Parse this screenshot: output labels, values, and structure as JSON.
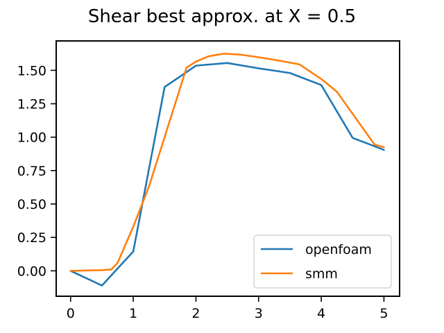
{
  "chart_data": {
    "type": "line",
    "title": "Shear best approx. at X = 0.5",
    "xlabel": "",
    "ylabel": "",
    "xlim": [
      -0.23,
      5.25
    ],
    "ylim": [
      -0.19,
      1.72
    ],
    "xticks": [
      0,
      1,
      2,
      3,
      4,
      5
    ],
    "xtick_labels": [
      "0",
      "1",
      "2",
      "3",
      "4",
      "5"
    ],
    "yticks": [
      0.0,
      0.25,
      0.5,
      0.75,
      1.0,
      1.25,
      1.5
    ],
    "ytick_labels": [
      "0.00",
      "0.25",
      "0.50",
      "0.75",
      "1.00",
      "1.25",
      "1.50"
    ],
    "grid": false,
    "legend_position": "bottom-right",
    "series": [
      {
        "name": "openfoam",
        "color": "#1f77b4",
        "x": [
          0,
          0.5,
          1.0,
          1.5,
          2.0,
          2.5,
          3.0,
          3.5,
          4.0,
          4.5,
          5.0
        ],
        "y": [
          0.0,
          -0.11,
          0.145,
          1.375,
          1.535,
          1.555,
          1.515,
          1.48,
          1.39,
          0.995,
          0.905
        ]
      },
      {
        "name": "smm",
        "color": "#ff7f0e",
        "x": [
          0,
          0.5,
          0.65,
          0.75,
          1.0,
          1.25,
          1.5,
          1.85,
          2.0,
          2.2,
          2.45,
          2.7,
          3.0,
          3.3,
          3.65,
          4.0,
          4.25,
          4.5,
          4.85,
          5.0
        ],
        "y": [
          0.0,
          0.005,
          0.01,
          0.06,
          0.33,
          0.63,
          1.0,
          1.52,
          1.565,
          1.605,
          1.625,
          1.618,
          1.598,
          1.575,
          1.545,
          1.435,
          1.34,
          1.175,
          0.945,
          0.925
        ]
      }
    ]
  }
}
